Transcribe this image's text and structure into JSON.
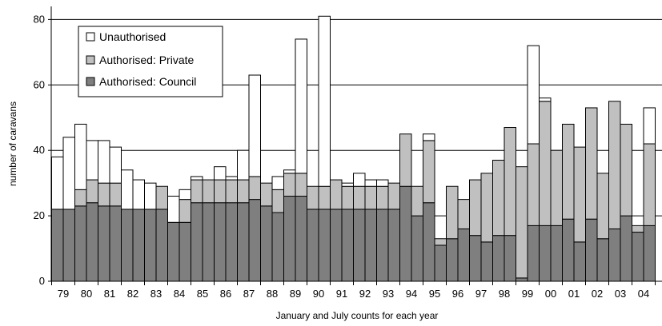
{
  "chart_data": {
    "type": "bar",
    "stacked": true,
    "title": "",
    "xlabel": "January and July counts for each year",
    "ylabel": "number of caravans",
    "ylim": [
      0,
      84
    ],
    "yticks": [
      0,
      20,
      40,
      60,
      80
    ],
    "grid": true,
    "legend_position": "top-left",
    "year_labels": [
      "79",
      "80",
      "81",
      "82",
      "83",
      "84",
      "85",
      "86",
      "87",
      "88",
      "89",
      "90",
      "91",
      "92",
      "93",
      "94",
      "95",
      "96",
      "97",
      "98",
      "99",
      "00",
      "01",
      "02",
      "03",
      "04"
    ],
    "categories": [
      "Jan 79",
      "Jul 79",
      "Jan 80",
      "Jul 80",
      "Jan 81",
      "Jul 81",
      "Jan 82",
      "Jul 82",
      "Jan 83",
      "Jul 83",
      "Jan 84",
      "Jul 84",
      "Jan 85",
      "Jul 85",
      "Jan 86",
      "Jul 86",
      "Jan 87",
      "Jul 87",
      "Jan 88",
      "Jul 88",
      "Jan 89",
      "Jul 89",
      "Jan 90",
      "Jul 90",
      "Jan 91",
      "Jul 91",
      "Jan 92",
      "Jul 92",
      "Jan 93",
      "Jul 93",
      "Jan 94",
      "Jul 94",
      "Jan 95",
      "Jul 95",
      "Jan 96",
      "Jul 96",
      "Jan 97",
      "Jul 97",
      "Jan 98",
      "Jul 98",
      "Jan 99",
      "Jul 99",
      "Jan 00",
      "Jul 00",
      "Jan 01",
      "Jul 01",
      "Jan 02",
      "Jul 02",
      "Jan 03",
      "Jul 03",
      "Jan 04",
      "Jul 04"
    ],
    "series": [
      {
        "name": "Authorised: Council",
        "color": "#7f7f7f",
        "values": [
          22,
          22,
          23,
          24,
          23,
          23,
          22,
          22,
          22,
          22,
          18,
          18,
          24,
          24,
          24,
          24,
          24,
          25,
          23,
          21,
          26,
          26,
          22,
          22,
          22,
          22,
          22,
          22,
          22,
          22,
          29,
          20,
          24,
          11,
          13,
          16,
          14,
          12,
          14,
          14,
          1,
          17,
          17,
          17,
          19,
          12,
          19,
          13,
          16,
          20,
          15,
          17
        ]
      },
      {
        "name": "Authorised: Private",
        "color": "#c0c0c0",
        "values": [
          0,
          0,
          5,
          7,
          7,
          7,
          0,
          0,
          0,
          7,
          0,
          7,
          7,
          7,
          7,
          7,
          7,
          7,
          7,
          7,
          7,
          7,
          7,
          7,
          9,
          7,
          7,
          7,
          7,
          8,
          16,
          9,
          19,
          2,
          16,
          9,
          17,
          21,
          23,
          33,
          34,
          25,
          38,
          23,
          29,
          29,
          34,
          20,
          39,
          28,
          2,
          25
        ]
      },
      {
        "name": "Unauthorised",
        "color": "#ffffff",
        "values": [
          16,
          22,
          20,
          12,
          13,
          11,
          12,
          9,
          8,
          0,
          8,
          3,
          1,
          0,
          4,
          1,
          9,
          31,
          0,
          4,
          1,
          41,
          0,
          52,
          0,
          1,
          4,
          2,
          2,
          0,
          0,
          0,
          2,
          0,
          0,
          0,
          0,
          0,
          0,
          0,
          0,
          30,
          1,
          0,
          0,
          0,
          0,
          0,
          0,
          0,
          0,
          11
        ]
      }
    ]
  }
}
